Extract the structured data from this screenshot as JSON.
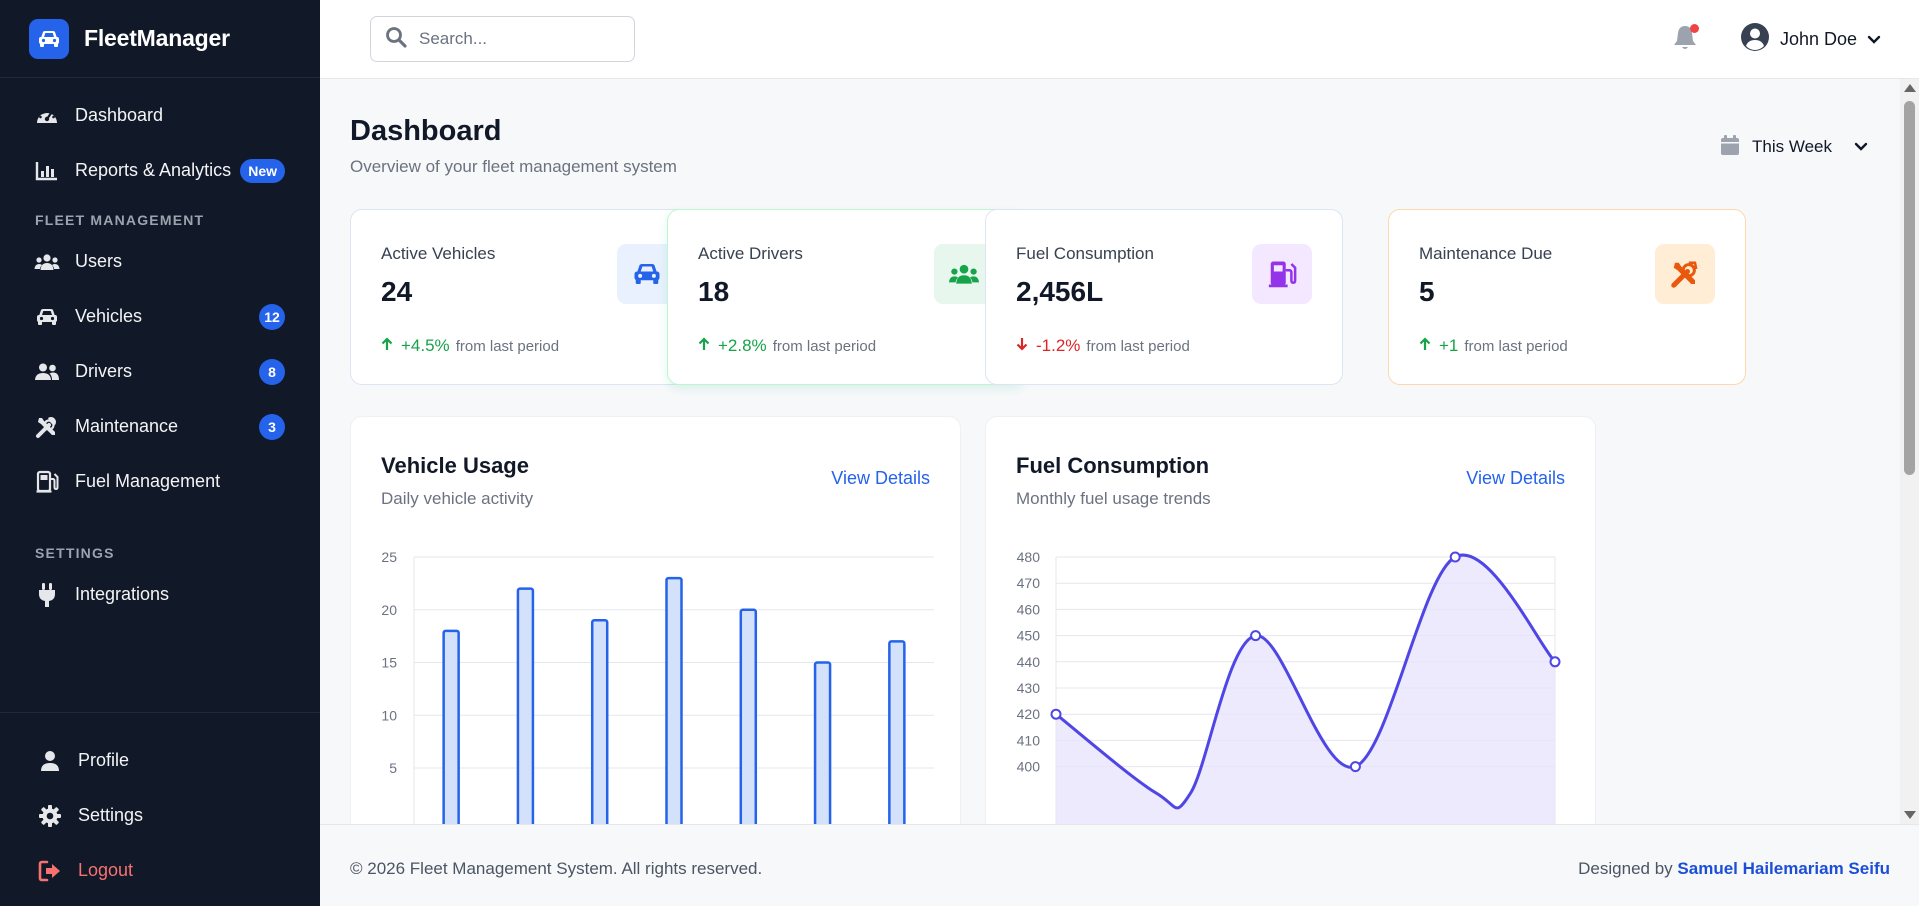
{
  "brand": {
    "name": "FleetManager"
  },
  "sidebar": {
    "primary": [
      {
        "label": "Dashboard",
        "icon": "gauge-icon"
      },
      {
        "label": "Reports & Analytics",
        "icon": "bar-chart-icon",
        "badge": "New"
      }
    ],
    "fleet_section": "FLEET MANAGEMENT",
    "fleet": [
      {
        "label": "Users",
        "icon": "users-icon"
      },
      {
        "label": "Vehicles",
        "icon": "car-icon",
        "badge": "12"
      },
      {
        "label": "Drivers",
        "icon": "drivers-icon",
        "badge": "8"
      },
      {
        "label": "Maintenance",
        "icon": "tools-icon",
        "badge": "3"
      },
      {
        "label": "Fuel Management",
        "icon": "gas-pump-icon"
      }
    ],
    "settings_section": "SETTINGS",
    "settings": [
      {
        "label": "Integrations",
        "icon": "plug-icon"
      }
    ],
    "bottom": [
      {
        "label": "Profile",
        "icon": "user-icon"
      },
      {
        "label": "Settings",
        "icon": "gear-icon"
      },
      {
        "label": "Logout",
        "icon": "logout-icon"
      }
    ]
  },
  "topbar": {
    "search_placeholder": "Search...",
    "user_name": "John Doe",
    "notification_dot": true
  },
  "page": {
    "title": "Dashboard",
    "subtitle": "Overview of your fleet management system",
    "range_label": "This Week"
  },
  "stats": [
    {
      "title": "Active Vehicles",
      "value": "24",
      "trend": "+4.5%",
      "direction": "up",
      "from": "from last period",
      "icon": "car-icon",
      "icon_bg": "#eaf1fe",
      "icon_color": "#2563eb"
    },
    {
      "title": "Active Drivers",
      "value": "18",
      "trend": "+2.8%",
      "direction": "up",
      "from": "from last period",
      "icon": "users-icon",
      "icon_bg": "#e7f7ee",
      "icon_color": "#16a34a"
    },
    {
      "title": "Fuel Consumption",
      "value": "2,456L",
      "trend": "-1.2%",
      "direction": "down",
      "from": "from last period",
      "icon": "gas-pump-icon",
      "icon_bg": "#f3e8ff",
      "icon_color": "#9333ea"
    },
    {
      "title": "Maintenance Due",
      "value": "5",
      "trend": "+1",
      "direction": "up",
      "from": "from last period",
      "icon": "tools-icon",
      "icon_bg": "#ffedd5",
      "icon_color": "#ea580c"
    }
  ],
  "panels": {
    "vehicle_usage": {
      "title": "Vehicle Usage",
      "subtitle": "Daily vehicle activity",
      "link": "View Details"
    },
    "fuel": {
      "title": "Fuel Consumption",
      "subtitle": "Monthly fuel usage trends",
      "link": "View Details"
    }
  },
  "chart_data": [
    {
      "type": "bar",
      "values": [
        18,
        22,
        19,
        23,
        20,
        15,
        17
      ],
      "yticks": [
        25,
        20,
        15,
        10,
        5
      ],
      "ylim": [
        0,
        25
      ],
      "color": "#2563eb",
      "fill": "#d3e1fb"
    },
    {
      "type": "area",
      "values": [
        420,
        390,
        390,
        450,
        400,
        480,
        440
      ],
      "yticks": [
        480,
        470,
        460,
        450,
        440,
        430,
        420,
        410,
        400
      ],
      "ylim": [
        380,
        480
      ],
      "color": "#4f46e5",
      "fill": "#e5e3fb"
    }
  ],
  "footer": {
    "copyright": "© 2026 Fleet Management System. All rights reserved.",
    "designed_by": "Designed by",
    "author": "Samuel Hailemariam Seifu"
  }
}
